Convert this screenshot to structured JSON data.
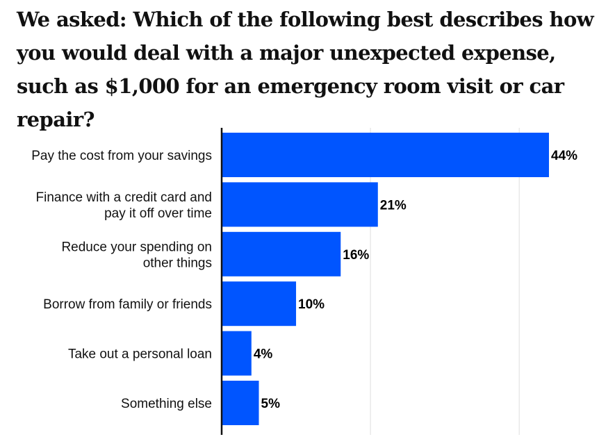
{
  "chart_data": {
    "type": "bar",
    "orientation": "horizontal",
    "title": "We asked: Which of the following best describes how you would deal with a major unexpected expense, such as $1,000 for an emergency room visit or car repair?",
    "categories": [
      "Pay the cost from your savings",
      "Finance with a credit card and pay it off over time",
      "Reduce your spending on other things",
      "Borrow from family or friends",
      "Take out a personal loan",
      "Something else"
    ],
    "category_lines": [
      [
        "Pay the cost from your savings"
      ],
      [
        "Finance with a credit card and",
        "pay it off over time"
      ],
      [
        "Reduce your spending on",
        "other things"
      ],
      [
        "Borrow from family or friends"
      ],
      [
        "Take out a personal loan"
      ],
      [
        "Something else"
      ]
    ],
    "values": [
      44,
      21,
      16,
      10,
      4,
      5
    ],
    "value_labels": [
      "44%",
      "21%",
      "16%",
      "10%",
      "4%",
      "5%"
    ],
    "unit": "%",
    "xlim": [
      0,
      44
    ],
    "gridlines": [
      20,
      40
    ],
    "grid": true,
    "legend": "none",
    "bar_color": "#0055FF",
    "axis_color": "#111111",
    "grid_color": "#DDDDDD"
  }
}
